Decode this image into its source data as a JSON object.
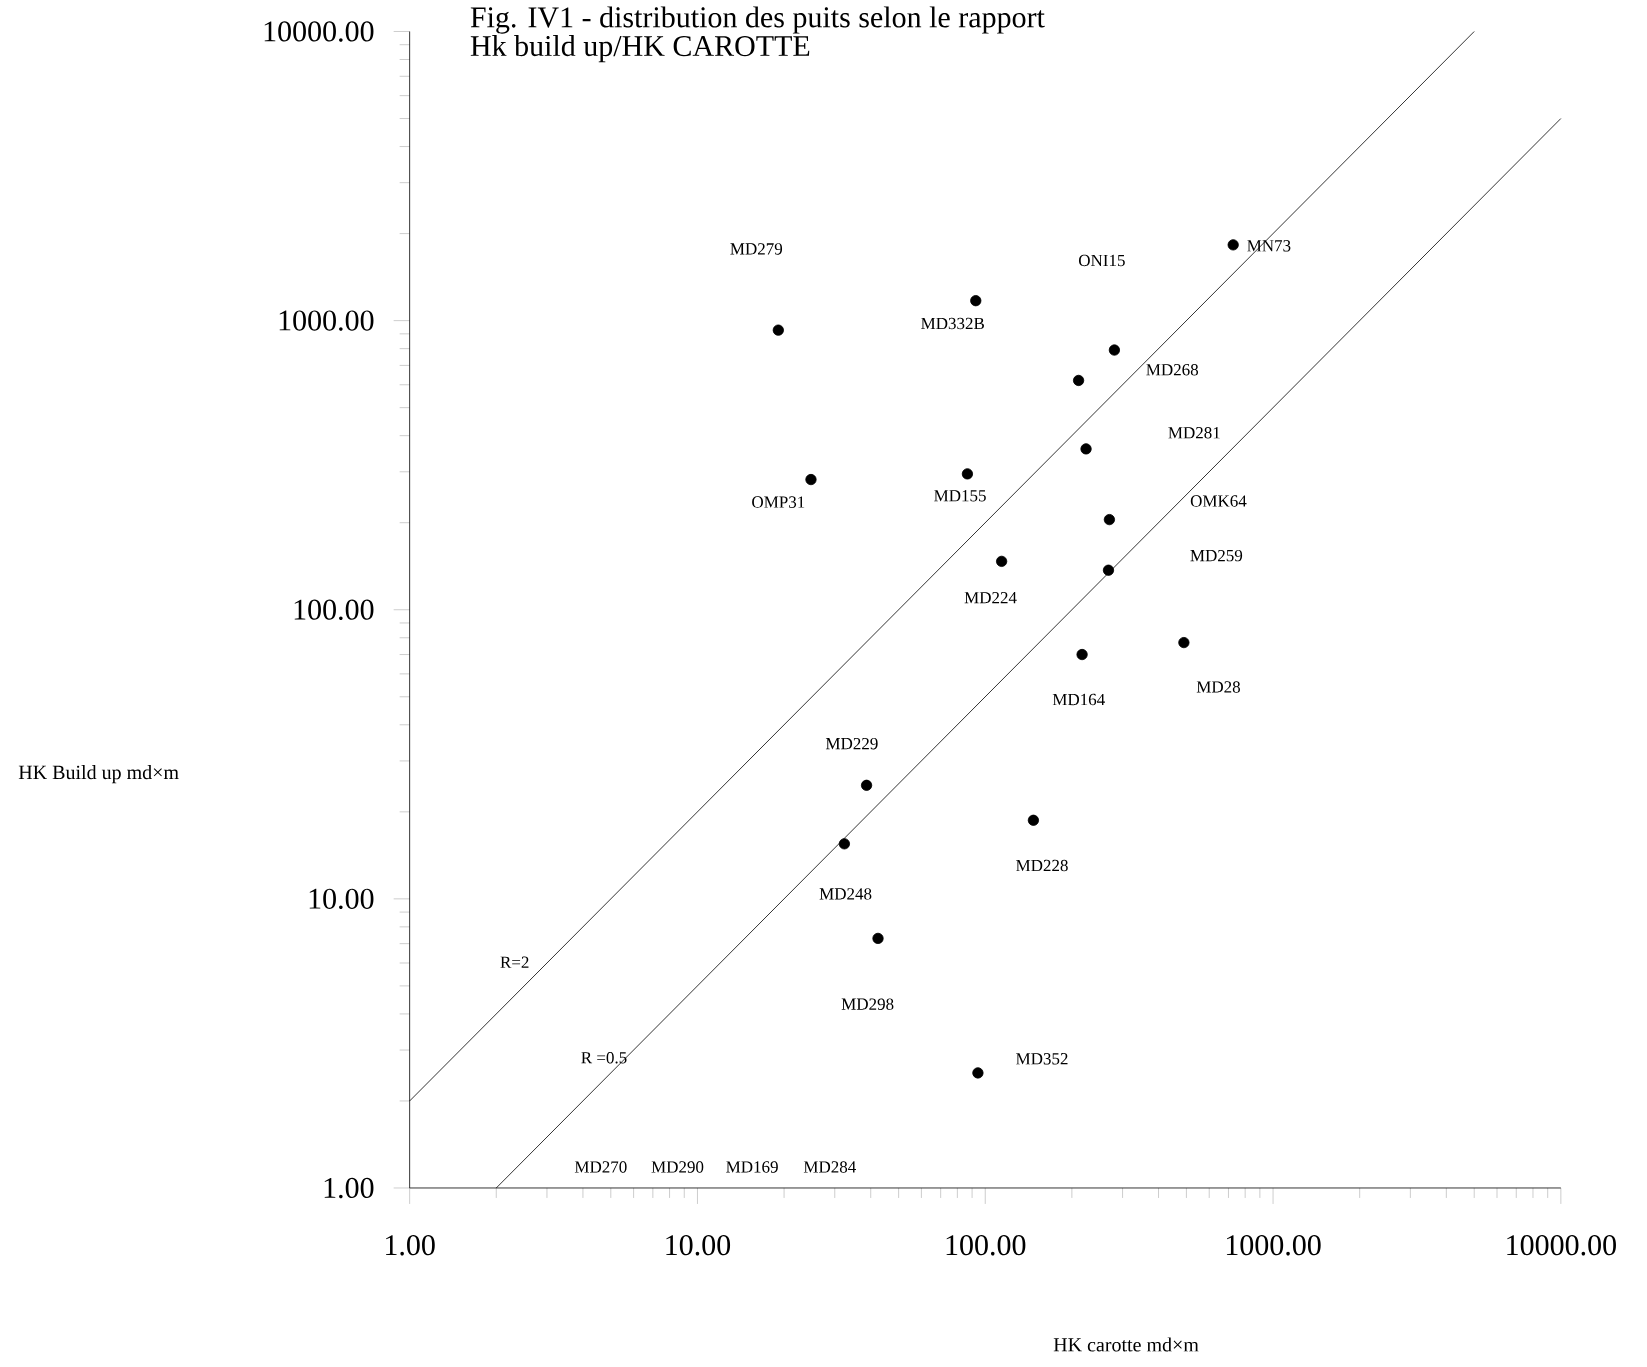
{
  "chart_data": {
    "type": "scatter",
    "title": "Fig. IV1 - distribution des puits selon le rapport",
    "subtitle": "Hk build up/HK CAROTTE",
    "xlabel": "HK carotte md×m",
    "ylabel": "HK Build up md×m",
    "log": "xy",
    "grid": false,
    "xlim": [
      1,
      10000
    ],
    "ylim": [
      1,
      10000
    ],
    "xticks": [
      {
        "value": 1,
        "label": "1.00"
      },
      {
        "value": 10,
        "label": "10.00"
      },
      {
        "value": 100,
        "label": "100.00"
      },
      {
        "value": 1000,
        "label": "1000.00"
      },
      {
        "value": 10000,
        "label": "10000.00"
      }
    ],
    "yticks": [
      {
        "value": 1,
        "label": "1.00"
      },
      {
        "value": 10,
        "label": "10.00"
      },
      {
        "value": 100,
        "label": "100.00"
      },
      {
        "value": 1000,
        "label": "1000.00"
      },
      {
        "value": 10000,
        "label": "10000.00"
      }
    ],
    "series": [
      {
        "color": "#000000",
        "marker": "circle",
        "x": [
          19.1,
          24.8,
          92.7,
          86.7,
          114,
          727,
          281,
          211,
          224,
          270,
          268,
          490,
          217,
          38.7,
          32.4,
          147,
          42.4,
          94.3
        ],
        "values": [
          927,
          282,
          1172,
          295,
          147,
          1828,
          791,
          621,
          360,
          205,
          137,
          77,
          70,
          24.7,
          15.5,
          18.7,
          7.3,
          2.5
        ]
      },
      {
        "type": "line",
        "color": "#000000",
        "line_style": "solid",
        "x": [
          1,
          5000
        ],
        "values": [
          2,
          10000
        ]
      },
      {
        "type": "line",
        "color": "#000000",
        "line_style": "solid",
        "x": [
          2,
          10000
        ],
        "values": [
          1,
          5000
        ]
      }
    ],
    "annotations": [
      "MD279",
      "ONI15",
      "MN73",
      "MD332B",
      "MD268",
      "MD281",
      "OMP31",
      "MD155",
      "OMK64",
      "MD259",
      "MD224",
      "MD164",
      "MD28",
      "MD229",
      "MD228",
      "MD248",
      "MD298",
      "MD352",
      "MD270",
      "MD290",
      "MD169",
      "MD284",
      "R=2",
      "R =0.5"
    ]
  }
}
